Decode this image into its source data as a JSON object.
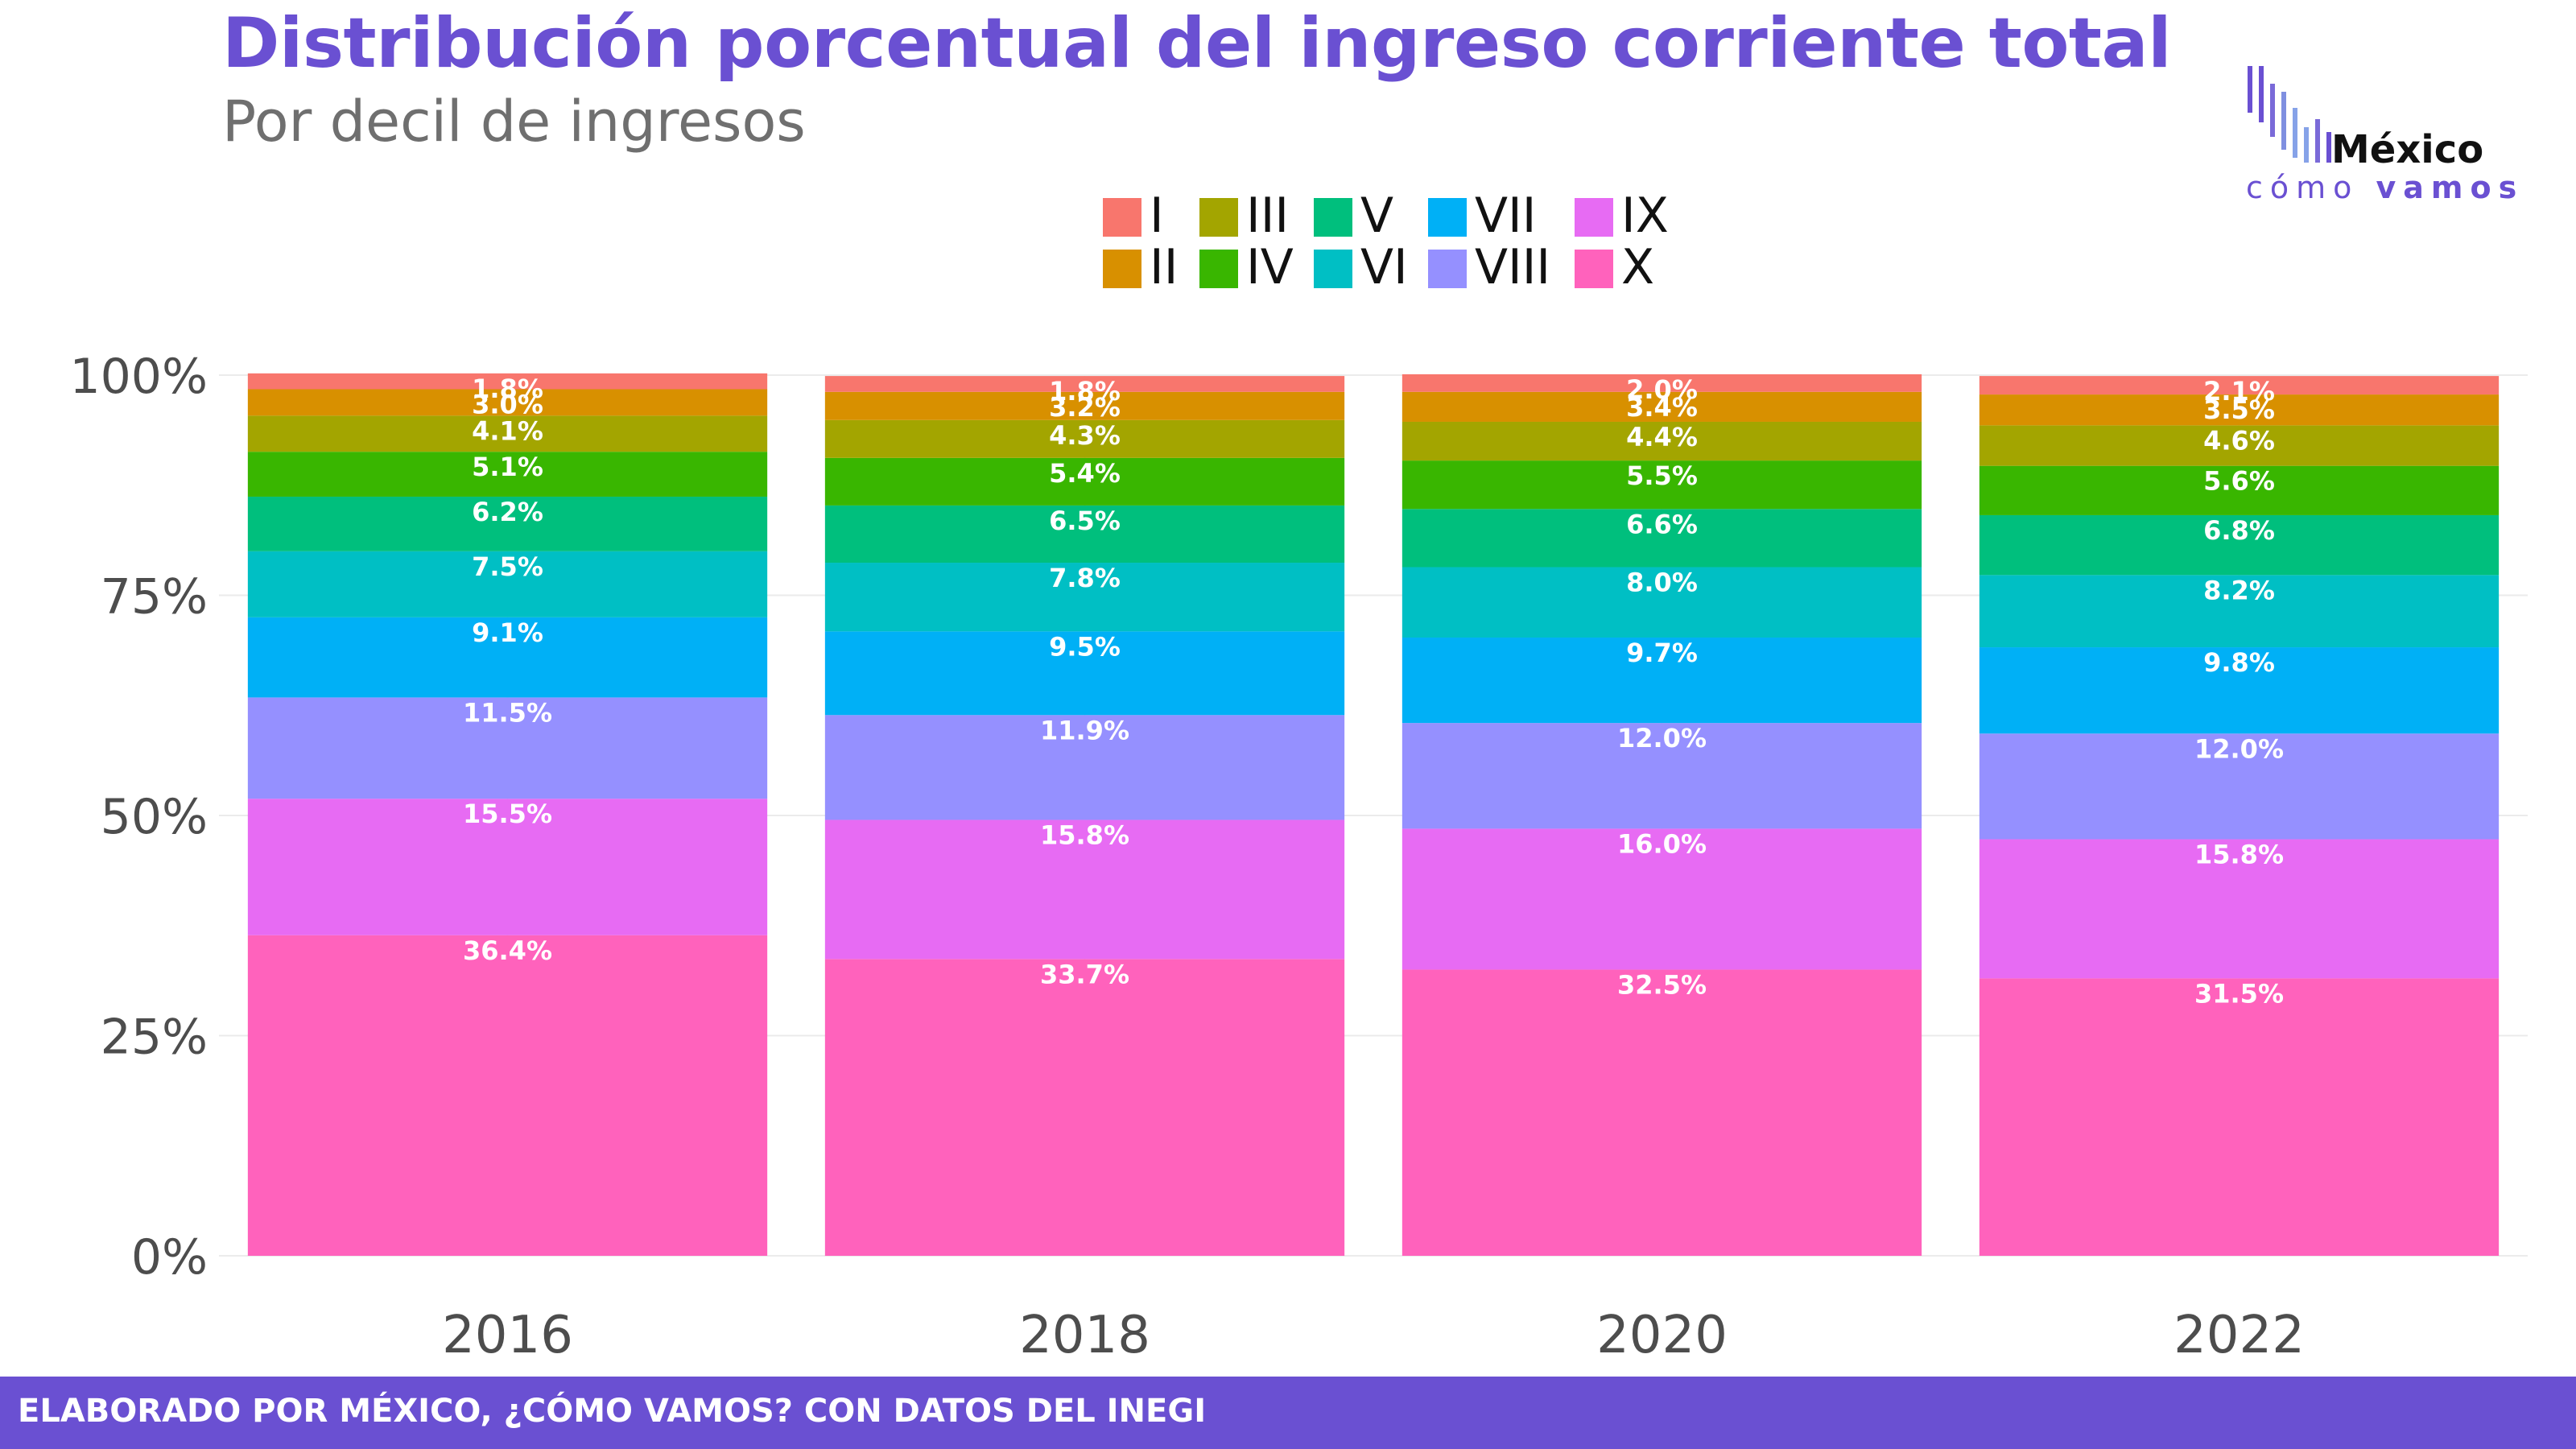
{
  "header": {
    "title": "Distribución porcentual del ingreso corriente total",
    "subtitle": "Por decil de ingresos"
  },
  "logo": {
    "line1": "México",
    "line2a": "cómo",
    "line2b": "vamos"
  },
  "footer": {
    "text": "ELABORADO POR MÉXICO, ¿CÓMO VAMOS? CON DATOS DEL INEGI"
  },
  "colors": {
    "brand": "#6a50d2",
    "deciles": {
      "I": "#f8766d",
      "II": "#d89000",
      "III": "#a3a500",
      "IV": "#39b600",
      "V": "#00bf7d",
      "VI": "#00bfc4",
      "VII": "#00b0f6",
      "VIII": "#9590ff",
      "IX": "#e76bf3",
      "X": "#ff62bc"
    }
  },
  "chart_data": {
    "type": "bar",
    "stacked": true,
    "categories": [
      "2016",
      "2018",
      "2020",
      "2022"
    ],
    "ylim": [
      0,
      100
    ],
    "ytick_labels": [
      "0%",
      "25%",
      "50%",
      "75%",
      "100%"
    ],
    "legend_position": "top",
    "grid": true,
    "series": [
      {
        "name": "I",
        "values": [
          1.8,
          1.8,
          2.0,
          2.1
        ],
        "labels": [
          "1.8%",
          "1.8%",
          "2.0%",
          "2.1%"
        ]
      },
      {
        "name": "II",
        "values": [
          3.0,
          3.2,
          3.4,
          3.5
        ],
        "labels": [
          "3.0%",
          "3.2%",
          "3.4%",
          "3.5%"
        ]
      },
      {
        "name": "III",
        "values": [
          4.1,
          4.3,
          4.4,
          4.6
        ],
        "labels": [
          "4.1%",
          "4.3%",
          "4.4%",
          "4.6%"
        ]
      },
      {
        "name": "IV",
        "values": [
          5.1,
          5.4,
          5.5,
          5.6
        ],
        "labels": [
          "5.1%",
          "5.4%",
          "5.5%",
          "5.6%"
        ]
      },
      {
        "name": "V",
        "values": [
          6.2,
          6.5,
          6.6,
          6.8
        ],
        "labels": [
          "6.2%",
          "6.5%",
          "6.6%",
          "6.8%"
        ]
      },
      {
        "name": "VI",
        "values": [
          7.5,
          7.8,
          8.0,
          8.2
        ],
        "labels": [
          "7.5%",
          "7.8%",
          "8.0%",
          "8.2%"
        ]
      },
      {
        "name": "VII",
        "values": [
          9.1,
          9.5,
          9.7,
          9.8
        ],
        "labels": [
          "9.1%",
          "9.5%",
          "9.7%",
          "9.8%"
        ]
      },
      {
        "name": "VIII",
        "values": [
          11.5,
          11.9,
          12.0,
          12.0
        ],
        "labels": [
          "11.5%",
          "11.9%",
          "12.0%",
          "12.0%"
        ]
      },
      {
        "name": "IX",
        "values": [
          15.5,
          15.8,
          16.0,
          15.8
        ],
        "labels": [
          "15.5%",
          "15.8%",
          "16.0%",
          "15.8%"
        ]
      },
      {
        "name": "X",
        "values": [
          36.4,
          33.7,
          32.5,
          31.5
        ],
        "labels": [
          "36.4%",
          "33.7%",
          "32.5%",
          "31.5%"
        ]
      }
    ]
  }
}
